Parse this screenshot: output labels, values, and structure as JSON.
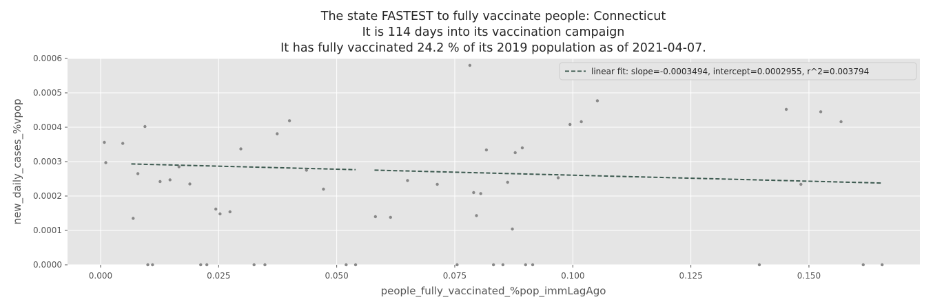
{
  "chart_data": {
    "type": "scatter",
    "title_lines": [
      "The state FASTEST to fully vaccinate people: Connecticut",
      "It is 114 days into its vaccination campaign",
      "It has fully vaccinated  24.2 % of its 2019 population as of 2021-04-07."
    ],
    "xlabel": "people_fully_vaccinated_%pop_immLagAgo",
    "ylabel": "new_daily_cases_%vpop",
    "xlim": [
      -0.007,
      0.1735
    ],
    "ylim": [
      0,
      0.0006
    ],
    "x_ticks": [
      "0.000",
      "0.025",
      "0.050",
      "0.075",
      "0.100",
      "0.125",
      "0.150"
    ],
    "y_ticks": [
      "0.0000",
      "0.0001",
      "0.0002",
      "0.0003",
      "0.0004",
      "0.0005",
      "0.0006"
    ],
    "grid": true,
    "legend_position": "top-right",
    "background_color": "#e5e5e5",
    "grid_color": "#ffffff",
    "point_color": "#888888",
    "fit_color": "#3d5a50",
    "points": [
      {
        "x": 0.0008,
        "y": 0.000356
      },
      {
        "x": 0.0011,
        "y": 0.000297
      },
      {
        "x": 0.0047,
        "y": 0.000353
      },
      {
        "x": 0.0069,
        "y": 0.000135
      },
      {
        "x": 0.0079,
        "y": 0.000265
      },
      {
        "x": 0.0094,
        "y": 0.000402
      },
      {
        "x": 0.0126,
        "y": 0.000242
      },
      {
        "x": 0.0147,
        "y": 0.000247
      },
      {
        "x": 0.0166,
        "y": 0.000285
      },
      {
        "x": 0.0189,
        "y": 0.000235
      },
      {
        "x": 0.0244,
        "y": 0.000162
      },
      {
        "x": 0.0253,
        "y": 0.000148
      },
      {
        "x": 0.0274,
        "y": 0.000154
      },
      {
        "x": 0.0297,
        "y": 0.000337
      },
      {
        "x": 0.0374,
        "y": 0.000381
      },
      {
        "x": 0.04,
        "y": 0.000419
      },
      {
        "x": 0.0436,
        "y": 0.000275
      },
      {
        "x": 0.0472,
        "y": 0.00022
      },
      {
        "x": 0.0582,
        "y": 0.00014
      },
      {
        "x": 0.0614,
        "y": 0.000138
      },
      {
        "x": 0.065,
        "y": 0.000245
      },
      {
        "x": 0.0713,
        "y": 0.000234
      },
      {
        "x": 0.0782,
        "y": 0.00058
      },
      {
        "x": 0.079,
        "y": 0.00021
      },
      {
        "x": 0.0796,
        "y": 0.000143
      },
      {
        "x": 0.0805,
        "y": 0.000207
      },
      {
        "x": 0.0817,
        "y": 0.000334
      },
      {
        "x": 0.0862,
        "y": 0.00024
      },
      {
        "x": 0.0872,
        "y": 0.000104
      },
      {
        "x": 0.0878,
        "y": 0.000326
      },
      {
        "x": 0.0893,
        "y": 0.00034
      },
      {
        "x": 0.0969,
        "y": 0.000253
      },
      {
        "x": 0.0994,
        "y": 0.000408
      },
      {
        "x": 0.1018,
        "y": 0.000416
      },
      {
        "x": 0.1052,
        "y": 0.000477
      },
      {
        "x": 0.1452,
        "y": 0.000452
      },
      {
        "x": 0.1483,
        "y": 0.000234
      },
      {
        "x": 0.1525,
        "y": 0.000445
      },
      {
        "x": 0.1568,
        "y": 0.000416
      },
      {
        "x": 0.01,
        "y": 0
      },
      {
        "x": 0.011,
        "y": 0
      },
      {
        "x": 0.0212,
        "y": 0
      },
      {
        "x": 0.0225,
        "y": 0
      },
      {
        "x": 0.0325,
        "y": 0
      },
      {
        "x": 0.0348,
        "y": 0
      },
      {
        "x": 0.052,
        "y": 0
      },
      {
        "x": 0.054,
        "y": 0
      },
      {
        "x": 0.0755,
        "y": 0
      },
      {
        "x": 0.0832,
        "y": 0
      },
      {
        "x": 0.0852,
        "y": 0
      },
      {
        "x": 0.09,
        "y": 0
      },
      {
        "x": 0.0915,
        "y": 0
      },
      {
        "x": 0.1395,
        "y": 0
      },
      {
        "x": 0.1615,
        "y": 0
      },
      {
        "x": 0.1655,
        "y": 0
      }
    ],
    "fit": {
      "label": "linear fit: slope=-0.0003494, intercept=0.0002955, r^2=0.003794",
      "slope": -0.0003494,
      "intercept": 0.0002955,
      "segments": [
        [
          0.0065,
          0.054
        ],
        [
          0.058,
          0.1655
        ]
      ]
    }
  }
}
